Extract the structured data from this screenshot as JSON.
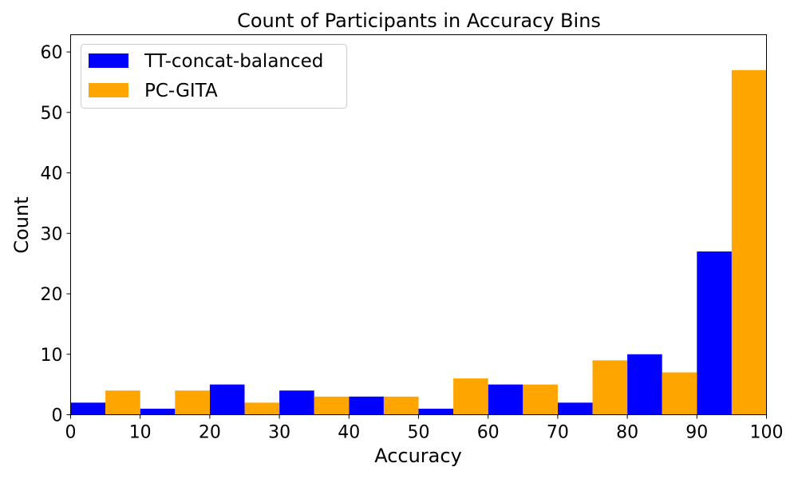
{
  "chart_data": {
    "type": "bar",
    "title": "Count of Participants in Accuracy Bins",
    "xlabel": "Accuracy",
    "ylabel": "Count",
    "xlim": [
      0,
      100
    ],
    "ylim": [
      0,
      62.85
    ],
    "xticks": [
      0,
      10,
      20,
      30,
      40,
      50,
      60,
      70,
      80,
      90,
      100
    ],
    "yticks": [
      0,
      10,
      20,
      30,
      40,
      50,
      60
    ],
    "grid": false,
    "legend_position": "top-left",
    "bins": [
      [
        0,
        10
      ],
      [
        10,
        20
      ],
      [
        20,
        30
      ],
      [
        30,
        40
      ],
      [
        40,
        50
      ],
      [
        50,
        60
      ],
      [
        60,
        70
      ],
      [
        70,
        80
      ],
      [
        80,
        90
      ],
      [
        90,
        100
      ]
    ],
    "series": [
      {
        "name": "TT-concat-balanced",
        "color": "#0000ff",
        "values": [
          2,
          1,
          5,
          4,
          3,
          1,
          5,
          2,
          10,
          27
        ]
      },
      {
        "name": "PC-GITA",
        "color": "#ffa500",
        "values": [
          4,
          4,
          2,
          3,
          3,
          6,
          5,
          9,
          7,
          57
        ]
      }
    ]
  }
}
